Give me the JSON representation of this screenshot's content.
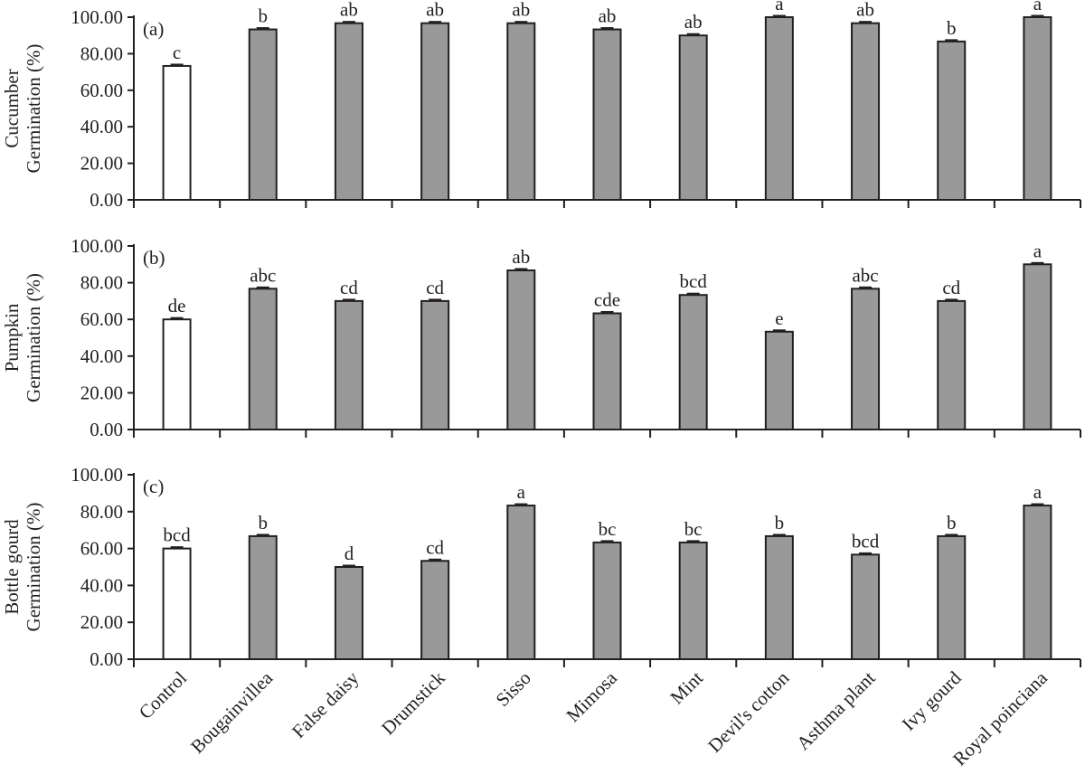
{
  "chart_data": [
    {
      "type": "bar",
      "panel_label": "(a)",
      "ylabel_line1": "Cucumber",
      "ylabel_line2": "Germination (%)",
      "ylim": [
        0,
        100
      ],
      "yticks": [
        "0.00",
        "20.00",
        "40.00",
        "60.00",
        "80.00",
        "100.00"
      ],
      "categories": [
        "Control",
        "Bougainvillea",
        "False daisy",
        "Drumstick",
        "Sisso",
        "Mimosa",
        "Mint",
        "Devil's cotton",
        "Asthma plant",
        "Ivy gourd",
        "Royal poinciana"
      ],
      "values": [
        73.3,
        93.3,
        96.7,
        96.7,
        96.7,
        93.3,
        90.0,
        100.0,
        96.7,
        86.7,
        100.0
      ],
      "letters": [
        "c",
        "b",
        "ab",
        "ab",
        "ab",
        "ab",
        "ab",
        "a",
        "ab",
        "b",
        "a"
      ]
    },
    {
      "type": "bar",
      "panel_label": "(b)",
      "ylabel_line1": "Pumpkin",
      "ylabel_line2": "Germination (%)",
      "ylim": [
        0,
        100
      ],
      "yticks": [
        "0.00",
        "20.00",
        "40.00",
        "60.00",
        "80.00",
        "100.00"
      ],
      "categories": [
        "Control",
        "Bougainvillea",
        "False daisy",
        "Drumstick",
        "Sisso",
        "Mimosa",
        "Mint",
        "Devil's cotton",
        "Asthma plant",
        "Ivy gourd",
        "Royal poinciana"
      ],
      "values": [
        60.0,
        76.7,
        70.0,
        70.0,
        86.7,
        63.3,
        73.3,
        53.3,
        76.7,
        70.0,
        90.0
      ],
      "letters": [
        "de",
        "abc",
        "cd",
        "cd",
        "ab",
        "cde",
        "bcd",
        "e",
        "abc",
        "cd",
        "a"
      ]
    },
    {
      "type": "bar",
      "panel_label": "(c)",
      "ylabel_line1": "Bottle gourd",
      "ylabel_line2": "Germination (%)",
      "ylim": [
        0,
        100
      ],
      "yticks": [
        "0.00",
        "20.00",
        "40.00",
        "60.00",
        "80.00",
        "100.00"
      ],
      "categories": [
        "Control",
        "Bougainvillea",
        "False daisy",
        "Drumstick",
        "Sisso",
        "Mimosa",
        "Mint",
        "Devil's cotton",
        "Asthma plant",
        "Ivy gourd",
        "Royal poinciana"
      ],
      "values": [
        60.0,
        66.7,
        50.0,
        53.3,
        83.3,
        63.3,
        63.3,
        66.7,
        56.7,
        66.7,
        83.3
      ],
      "letters": [
        "bcd",
        "b",
        "d",
        "cd",
        "a",
        "bc",
        "bc",
        "b",
        "bcd",
        "b",
        "a"
      ]
    }
  ],
  "colors": {
    "control_fill": "#ffffff",
    "treatment_fill": "#999999",
    "outline": "#231f20"
  }
}
